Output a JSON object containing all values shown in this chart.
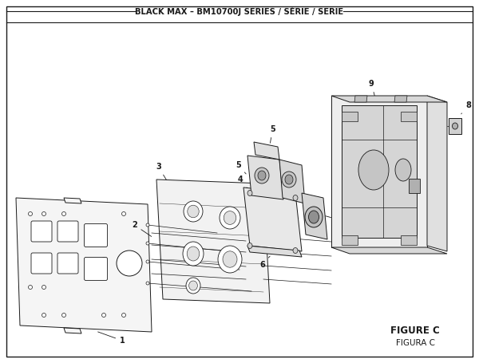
{
  "title": "BLACK MAX – BM10700J SERIES / SÉRIE / SERIE",
  "figure_label": "FIGURE C",
  "figura_label": "FIGURA C",
  "bg_color": "#ffffff",
  "line_color": "#1a1a1a",
  "figsize": [
    6.0,
    4.55
  ],
  "dpi": 100,
  "lw_main": 0.7,
  "lw_thin": 0.4
}
